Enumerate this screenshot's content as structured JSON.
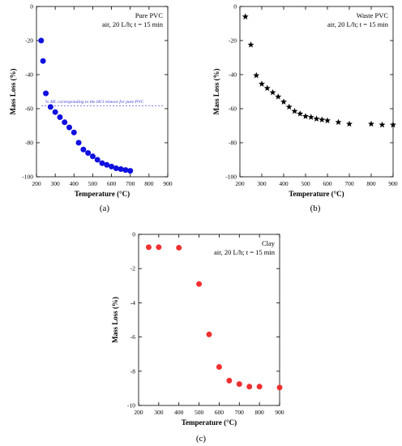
{
  "chart_data": [
    {
      "type": "scatter",
      "panel_label": "(a)",
      "title": "Pure PVC",
      "subtitle": "air, 20 L/h; t = 15 min",
      "xlabel": "Temperature (°C)",
      "ylabel": "Mass Loss (%)",
      "xlim": [
        200,
        900
      ],
      "ylim": [
        -100,
        0
      ],
      "xticks": [
        200,
        300,
        400,
        500,
        600,
        700,
        800,
        900
      ],
      "yticks": [
        -100,
        -80,
        -60,
        -40,
        -20,
        0
      ],
      "marker": "circle",
      "color": "#1010e0",
      "grid": false,
      "annotation": "% ML corresponding to the HCl remove for pure PVC",
      "reference_line": -58.3,
      "series": [
        {
          "x": [
            225,
            235,
            250,
            275,
            300,
            325,
            350,
            375,
            400,
            425,
            450,
            475,
            500,
            525,
            550,
            575,
            600,
            625,
            650,
            675,
            700
          ],
          "y": [
            -20,
            -32,
            -51,
            -59,
            -62,
            -65,
            -68,
            -71,
            -74,
            -80,
            -84,
            -86,
            -88,
            -90,
            -92,
            -93,
            -94,
            -95,
            -95.5,
            -96,
            -96.5
          ]
        }
      ]
    },
    {
      "type": "scatter",
      "panel_label": "(b)",
      "title": "Waste PVC",
      "subtitle": "air, 20 L/h; t = 15 min",
      "xlabel": "Temperature (°C)",
      "ylabel": "Mass Loss (%)",
      "xlim": [
        200,
        900
      ],
      "ylim": [
        -100,
        0
      ],
      "xticks": [
        200,
        300,
        400,
        500,
        600,
        700,
        800,
        900
      ],
      "yticks": [
        -100,
        -80,
        -60,
        -40,
        -20,
        0
      ],
      "marker": "star",
      "color": "#000000",
      "grid": false,
      "series": [
        {
          "x": [
            225,
            250,
            275,
            300,
            325,
            350,
            375,
            400,
            425,
            450,
            475,
            500,
            525,
            550,
            575,
            600,
            650,
            700,
            800,
            850,
            900
          ],
          "y": [
            -6,
            -22.5,
            -40.5,
            -45.5,
            -48,
            -50.5,
            -53,
            -56,
            -59,
            -61.5,
            -63,
            -64.5,
            -65,
            -66,
            -66.5,
            -67,
            -68,
            -69,
            -69,
            -69.5,
            -69.5
          ]
        }
      ]
    },
    {
      "type": "scatter",
      "panel_label": "(c)",
      "title": "Clay",
      "subtitle": "air, 20 L/h; t = 15 min",
      "xlabel": "Temperature (°C)",
      "ylabel": "Mass Loss (%)",
      "xlim": [
        200,
        900
      ],
      "ylim": [
        -10,
        0
      ],
      "xticks": [
        200,
        300,
        400,
        500,
        600,
        700,
        800,
        900
      ],
      "yticks": [
        -10,
        -8,
        -6,
        -4,
        -2,
        0
      ],
      "marker": "circle",
      "color": "#f03030",
      "grid": false,
      "series": [
        {
          "x": [
            250,
            300,
            400,
            500,
            550,
            600,
            650,
            700,
            750,
            800,
            900
          ],
          "y": [
            -0.75,
            -0.75,
            -0.78,
            -2.9,
            -5.85,
            -7.75,
            -8.55,
            -8.75,
            -8.9,
            -8.9,
            -8.95
          ]
        }
      ]
    }
  ]
}
